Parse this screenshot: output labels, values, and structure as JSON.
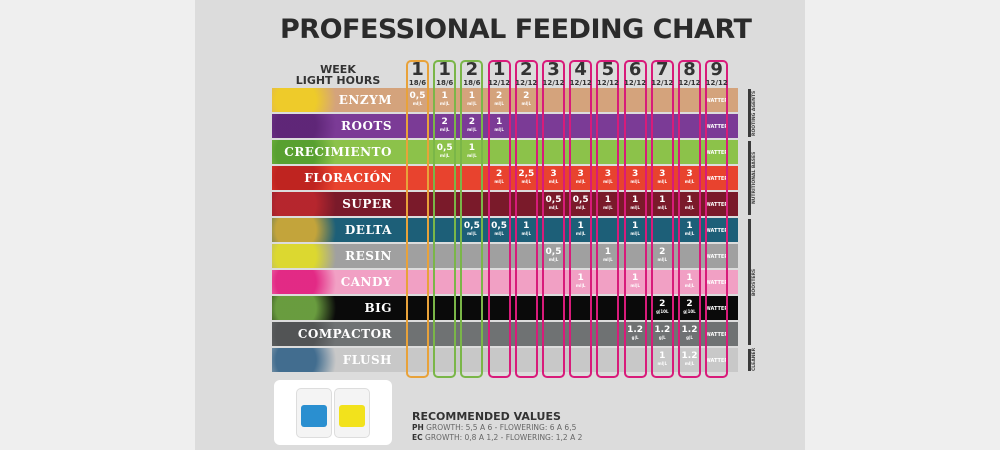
{
  "title": "PROFESSIONAL FEEDING CHART",
  "header": {
    "week_label": "WEEK",
    "light_label": "LIGHT HOURS"
  },
  "weeks": [
    {
      "week": "1",
      "light": "18/6",
      "color": "#e8a23a"
    },
    {
      "week": "1",
      "light": "18/6",
      "color": "#7ab648"
    },
    {
      "week": "2",
      "light": "18/6",
      "color": "#7ab648"
    },
    {
      "week": "1",
      "light": "12/12",
      "color": "#d81b7a"
    },
    {
      "week": "2",
      "light": "12/12",
      "color": "#d81b7a"
    },
    {
      "week": "3",
      "light": "12/12",
      "color": "#d81b7a"
    },
    {
      "week": "4",
      "light": "12/12",
      "color": "#d81b7a"
    },
    {
      "week": "5",
      "light": "12/12",
      "color": "#d81b7a"
    },
    {
      "week": "6",
      "light": "12/12",
      "color": "#d81b7a"
    },
    {
      "week": "7",
      "light": "12/12",
      "color": "#d81b7a"
    },
    {
      "week": "8",
      "light": "12/12",
      "color": "#d81b7a"
    },
    {
      "week": "9",
      "light": "12/12",
      "color": "#d81b7a"
    }
  ],
  "water_label": "WATTER",
  "products": [
    {
      "name": "ENZYM",
      "color": "#d4a37c",
      "deco": "#f2d21b",
      "values": [
        "0,5",
        "1",
        "1",
        "2",
        "2",
        "",
        "",
        "",
        "",
        "",
        "",
        ""
      ],
      "unit": "ml|L"
    },
    {
      "name": "ROOTS",
      "color": "#7b3b96",
      "deco": "#5a2372",
      "values": [
        "",
        "2",
        "2",
        "1",
        "",
        "",
        "",
        "",
        "",
        "",
        "",
        ""
      ],
      "unit": "ml|L"
    },
    {
      "name": "CRECIMIENTO",
      "color": "#8cc24a",
      "deco": "#4f9a2c",
      "values": [
        "",
        "0,5",
        "1",
        "",
        "",
        "",
        "",
        "",
        "",
        "",
        "",
        ""
      ],
      "unit": "ml|L"
    },
    {
      "name": "FLORACIÓN",
      "color": "#e8432e",
      "deco": "#b81e1e",
      "values": [
        "",
        "",
        "",
        "2",
        "2,5",
        "3",
        "3",
        "3",
        "3",
        "3",
        "3",
        ""
      ],
      "unit": "ml|L"
    },
    {
      "name": "SUPER",
      "color": "#7a1a2a",
      "deco": "#c0282e",
      "values": [
        "",
        "",
        "",
        "",
        "",
        "0,5",
        "0,5",
        "1",
        "1",
        "1",
        "1",
        ""
      ],
      "unit": "ml|L"
    },
    {
      "name": "DELTA",
      "color": "#1d5f78",
      "deco": "#e0b030",
      "values": [
        "",
        "",
        "0,5",
        "0,5",
        "1",
        "",
        "1",
        "",
        "1",
        "",
        "1",
        ""
      ],
      "unit": "ml|L"
    },
    {
      "name": "RESIN",
      "color": "#a0a0a0",
      "deco": "#e6e21c",
      "values": [
        "",
        "",
        "",
        "",
        "",
        "0,5",
        "",
        "1",
        "",
        "2",
        "",
        ""
      ],
      "unit": "ml|L"
    },
    {
      "name": "CANDY",
      "color": "#f1a0c4",
      "deco": "#e0157a",
      "values": [
        "",
        "",
        "",
        "",
        "",
        "",
        "1",
        "",
        "1",
        "",
        "1",
        ""
      ],
      "unit": "ml|L"
    },
    {
      "name": "BIG",
      "color": "#0a0a0a",
      "deco": "#7ab648",
      "values": [
        "",
        "",
        "",
        "",
        "",
        "",
        "",
        "",
        "",
        "2",
        "2",
        ""
      ],
      "unit": "g|10L"
    },
    {
      "name": "COMPACTOR",
      "color": "#6f7273",
      "deco": "#4d4f50",
      "values": [
        "",
        "",
        "",
        "",
        "",
        "",
        "",
        "",
        "1.2",
        "1.2",
        "1.2",
        ""
      ],
      "unit": "g|L"
    },
    {
      "name": "FLUSH",
      "color": "#c8c8c8",
      "deco": "#2a5d85",
      "values": [
        "",
        "",
        "",
        "",
        "",
        "",
        "",
        "",
        "",
        "1",
        "1.2",
        ""
      ],
      "unit": "ml|L"
    }
  ],
  "groups": [
    {
      "label": "ROOTING AGENTS",
      "from": 0,
      "to": 1
    },
    {
      "label": "NUTRITIONAL BASES",
      "from": 2,
      "to": 4
    },
    {
      "label": "BOOSTERS",
      "from": 5,
      "to": 9
    },
    {
      "label": "CLEANER",
      "from": 10,
      "to": 10
    }
  ],
  "recommended": {
    "title": "RECOMMENDED VALUES",
    "ph_label": "PH",
    "ph_text": "GROWTH: 5,5 A 6 - FLOWERING: 6 A 6,5",
    "ec_label": "EC",
    "ec_text": "GROWTH: 0,8 A 1,2 - FLOWERING: 1,2 A 2"
  }
}
